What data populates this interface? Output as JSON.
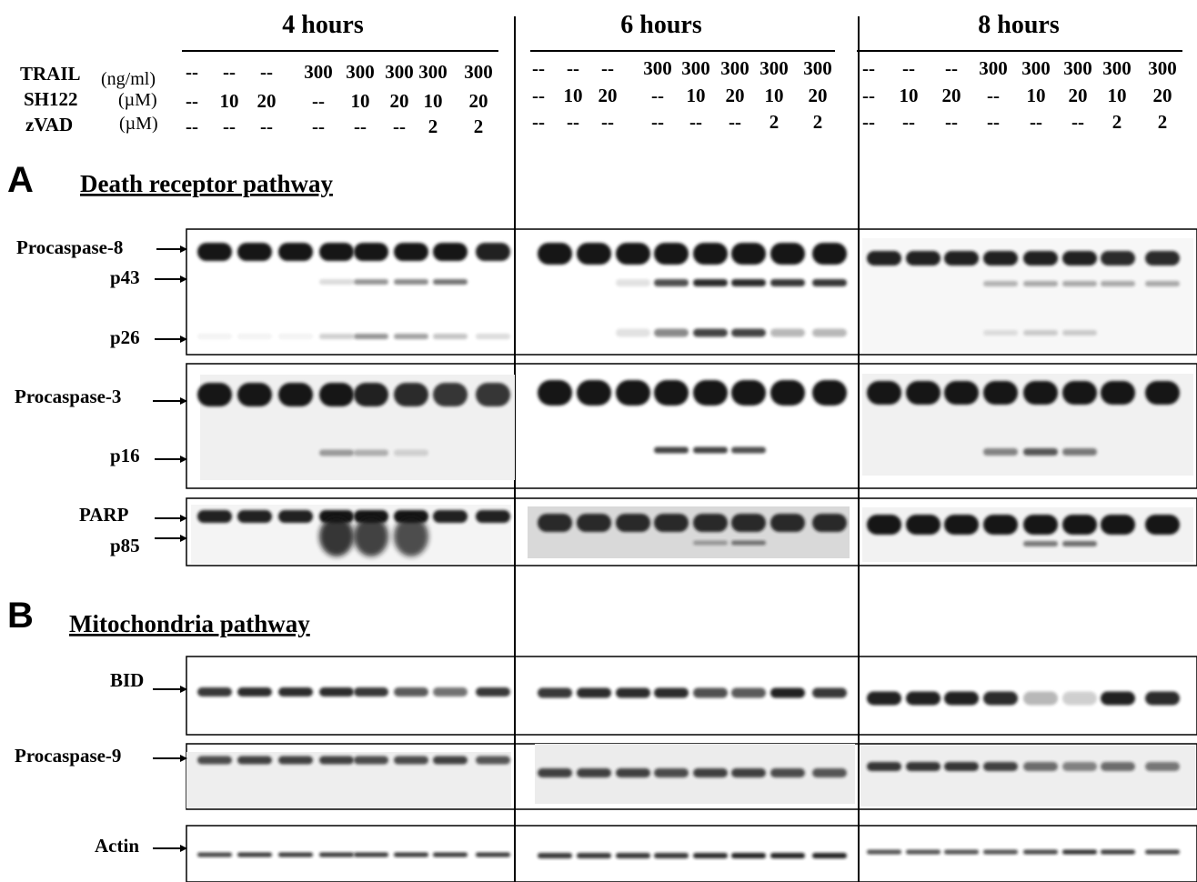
{
  "time_headers": [
    "4 hours",
    "6 hours",
    "8 hours"
  ],
  "conditions": [
    {
      "name": "TRAIL",
      "unit": "(ng/ml)",
      "values": [
        "--",
        "--",
        "--",
        "300",
        "300",
        "300",
        "300",
        "300"
      ]
    },
    {
      "name": "SH122",
      "unit": "(µM)",
      "values": [
        "--",
        "10",
        "20",
        "--",
        "10",
        "20",
        "10",
        "20"
      ]
    },
    {
      "name": "zVAD",
      "unit": "(µM)",
      "values": [
        "--",
        "--",
        "--",
        "--",
        "--",
        "--",
        "2",
        "2"
      ]
    }
  ],
  "panels": [
    {
      "letter": "A",
      "title": "Death receptor pathway"
    },
    {
      "letter": "B",
      "title": "Mitochondria pathway"
    }
  ],
  "blot_labels": {
    "procaspase8": "Procaspase-8",
    "p43": "p43",
    "p26": "p26",
    "procaspase3": "Procaspase-3",
    "p16": "p16",
    "parp": "PARP",
    "p85": "p85",
    "bid": "BID",
    "procaspase9": "Procaspase-9",
    "actin": "Actin"
  },
  "colors": {
    "band": "#141414",
    "background": "#ffffff",
    "frame": "#000000"
  }
}
